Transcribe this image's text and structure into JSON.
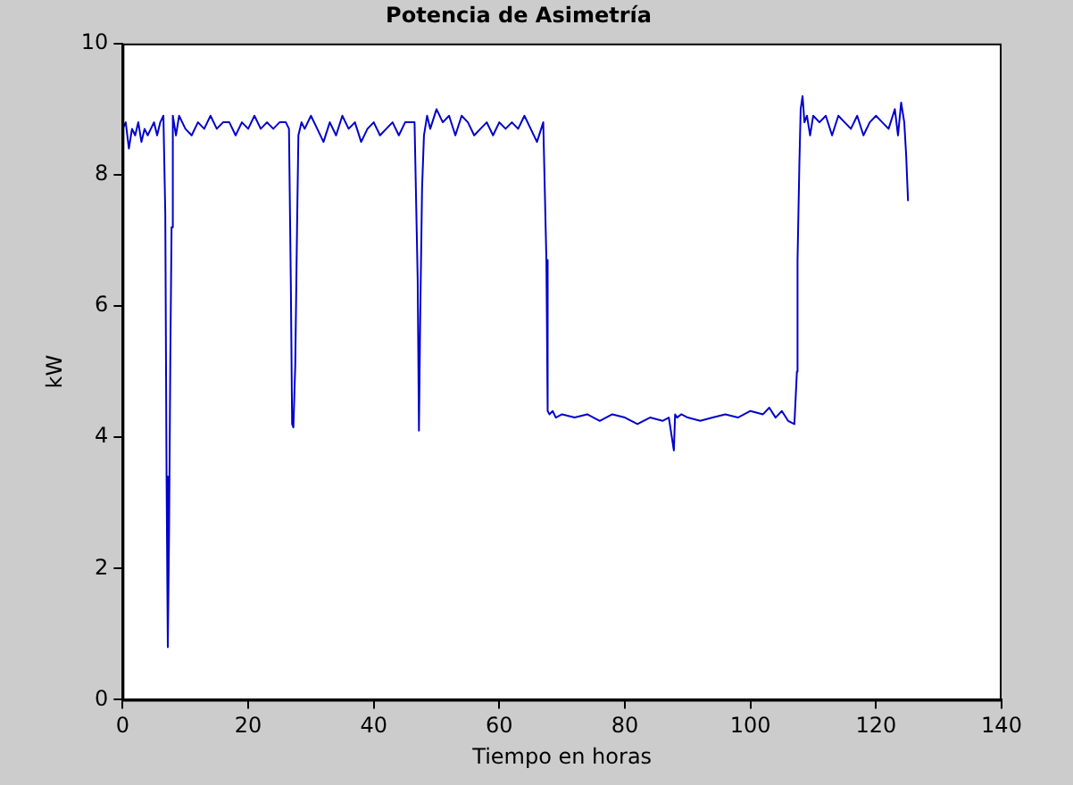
{
  "chart_data": {
    "type": "line",
    "title": "Potencia de Asimetría",
    "xlabel": "Tiempo en horas",
    "ylabel": "kW",
    "xlim": [
      0,
      140
    ],
    "ylim": [
      0,
      10
    ],
    "xticks": [
      0,
      20,
      40,
      60,
      80,
      100,
      120,
      140
    ],
    "yticks": [
      0,
      2,
      4,
      6,
      8,
      10
    ],
    "grid": false,
    "legend": false,
    "marker": "none",
    "line_style": "solid",
    "series": [
      {
        "color": "#0000cc",
        "x": [
          0,
          0.5,
          1,
          1.5,
          2,
          2.5,
          3,
          3.5,
          4,
          4.5,
          5,
          5.5,
          6,
          6.5,
          6.8,
          7.0,
          7.2,
          7.4,
          7.6,
          7.8,
          8.0,
          8.5,
          9,
          10,
          11,
          12,
          13,
          14,
          15,
          16,
          17,
          18,
          19,
          20,
          21,
          22,
          23,
          24,
          25,
          26,
          26.5,
          26.8,
          27.0,
          27.2,
          27.5,
          27.8,
          28.0,
          28.5,
          29,
          30,
          31,
          32,
          33,
          34,
          35,
          36,
          37,
          38,
          39,
          40,
          41,
          42,
          43,
          44,
          45,
          46,
          46.5,
          47.0,
          47.2,
          47.4,
          47.7,
          48.0,
          48.5,
          49,
          50,
          51,
          52,
          53,
          54,
          55,
          56,
          57,
          58,
          59,
          60,
          61,
          62,
          63,
          64,
          65,
          66,
          67,
          67.5,
          67.7,
          68.0,
          68.5,
          69,
          70,
          72,
          74,
          76,
          78,
          80,
          82,
          84,
          86,
          87,
          87.8,
          88.0,
          88.3,
          89,
          90,
          92,
          94,
          96,
          98,
          100,
          102,
          103,
          104,
          105,
          106,
          107,
          107.4,
          107.5,
          107.8,
          108.0,
          108.3,
          108.6,
          109,
          109.5,
          110,
          111,
          112,
          113,
          114,
          115,
          116,
          117,
          118,
          119,
          120,
          121,
          122,
          123,
          123.5,
          124,
          124.5,
          124.8,
          125.1
        ],
        "values": [
          8.7,
          8.8,
          8.4,
          8.7,
          8.6,
          8.8,
          8.5,
          8.7,
          8.6,
          8.7,
          8.8,
          8.6,
          8.8,
          8.9,
          7.4,
          3.4,
          0.8,
          2.5,
          5.2,
          7.2,
          8.9,
          8.6,
          8.9,
          8.7,
          8.6,
          8.8,
          8.7,
          8.9,
          8.7,
          8.8,
          8.8,
          8.6,
          8.8,
          8.7,
          8.9,
          8.7,
          8.8,
          8.7,
          8.8,
          8.8,
          8.7,
          6.3,
          4.2,
          4.15,
          5.1,
          7.3,
          8.6,
          8.8,
          8.7,
          8.9,
          8.7,
          8.5,
          8.8,
          8.6,
          8.9,
          8.7,
          8.8,
          8.5,
          8.7,
          8.8,
          8.6,
          8.7,
          8.8,
          8.6,
          8.8,
          8.8,
          8.8,
          6.4,
          4.1,
          5.8,
          7.8,
          8.6,
          8.9,
          8.7,
          9.0,
          8.8,
          8.9,
          8.6,
          8.9,
          8.8,
          8.6,
          8.7,
          8.8,
          8.6,
          8.8,
          8.7,
          8.8,
          8.7,
          8.9,
          8.7,
          8.5,
          8.8,
          6.7,
          4.4,
          4.35,
          4.4,
          4.3,
          4.35,
          4.3,
          4.35,
          4.25,
          4.35,
          4.3,
          4.2,
          4.3,
          4.25,
          4.3,
          3.8,
          4.35,
          4.3,
          4.35,
          4.3,
          4.25,
          4.3,
          4.35,
          4.3,
          4.4,
          4.35,
          4.45,
          4.3,
          4.4,
          4.25,
          4.2,
          5.0,
          6.7,
          8.2,
          9.0,
          9.2,
          8.8,
          8.9,
          8.6,
          8.9,
          8.8,
          8.9,
          8.6,
          8.9,
          8.8,
          8.7,
          8.9,
          8.6,
          8.8,
          8.9,
          8.8,
          8.7,
          9.0,
          8.6,
          9.1,
          8.8,
          8.3,
          7.6
        ]
      }
    ]
  }
}
